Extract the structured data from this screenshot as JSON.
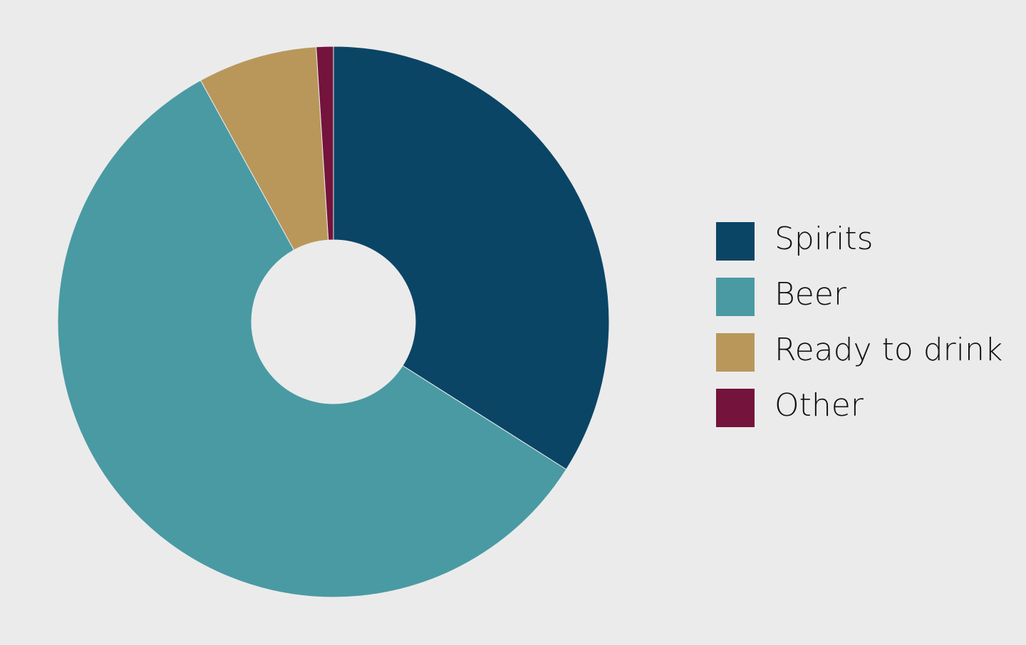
{
  "chart_data": {
    "type": "donut",
    "categories": [
      "Spirits",
      "Beer",
      "Ready to drink",
      "Other"
    ],
    "values": [
      34,
      58,
      7,
      1
    ],
    "colors": [
      "#0a4566",
      "#4a9aa3",
      "#b9975b",
      "#74133b"
    ],
    "legend": "right"
  }
}
